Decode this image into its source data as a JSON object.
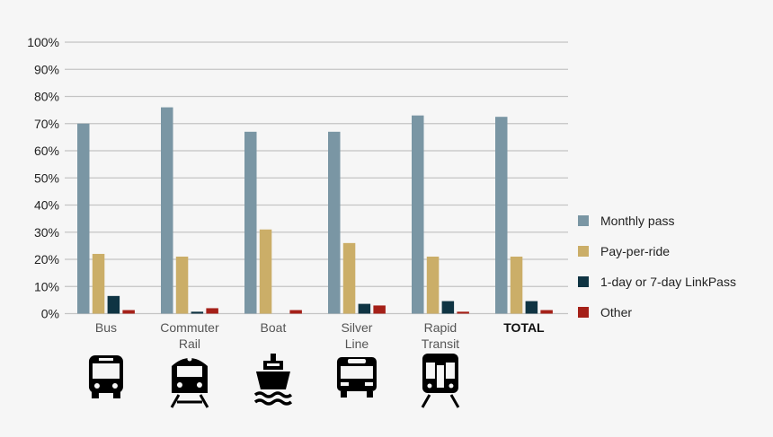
{
  "chart_data": {
    "type": "bar",
    "title": "",
    "xlabel": "",
    "ylabel": "",
    "ylim": [
      0,
      100
    ],
    "y_ticks": [
      "0%",
      "10%",
      "20%",
      "30%",
      "40%",
      "50%",
      "60%",
      "70%",
      "80%",
      "90%",
      "100%"
    ],
    "grid": true,
    "legend_position": "right",
    "categories": [
      {
        "lines": [
          "Bus"
        ],
        "bold": false,
        "icon": "bus-icon"
      },
      {
        "lines": [
          "Commuter",
          "Rail"
        ],
        "bold": false,
        "icon": "commuter-rail-icon"
      },
      {
        "lines": [
          "Boat"
        ],
        "bold": false,
        "icon": "boat-icon"
      },
      {
        "lines": [
          "Silver",
          "Line"
        ],
        "bold": false,
        "icon": "silver-line-bus-icon"
      },
      {
        "lines": [
          "Rapid",
          "Transit"
        ],
        "bold": false,
        "icon": "subway-icon"
      },
      {
        "lines": [
          "TOTAL"
        ],
        "bold": true,
        "icon": ""
      }
    ],
    "series": [
      {
        "name": "Monthly pass",
        "color": "#7a96a4",
        "values": [
          70,
          76,
          67,
          67,
          73,
          72.5
        ]
      },
      {
        "name": "Pay-per-ride",
        "color": "#cbae68",
        "values": [
          22,
          21,
          31,
          26,
          21,
          21
        ]
      },
      {
        "name": "1-day or 7-day LinkPass",
        "color": "#0f3443",
        "values": [
          6.5,
          0.7,
          0,
          3.6,
          4.6,
          4.6
        ]
      },
      {
        "name": "Other",
        "color": "#a52018",
        "values": [
          1.3,
          2,
          1.3,
          3,
          0.7,
          1.3
        ]
      }
    ]
  }
}
